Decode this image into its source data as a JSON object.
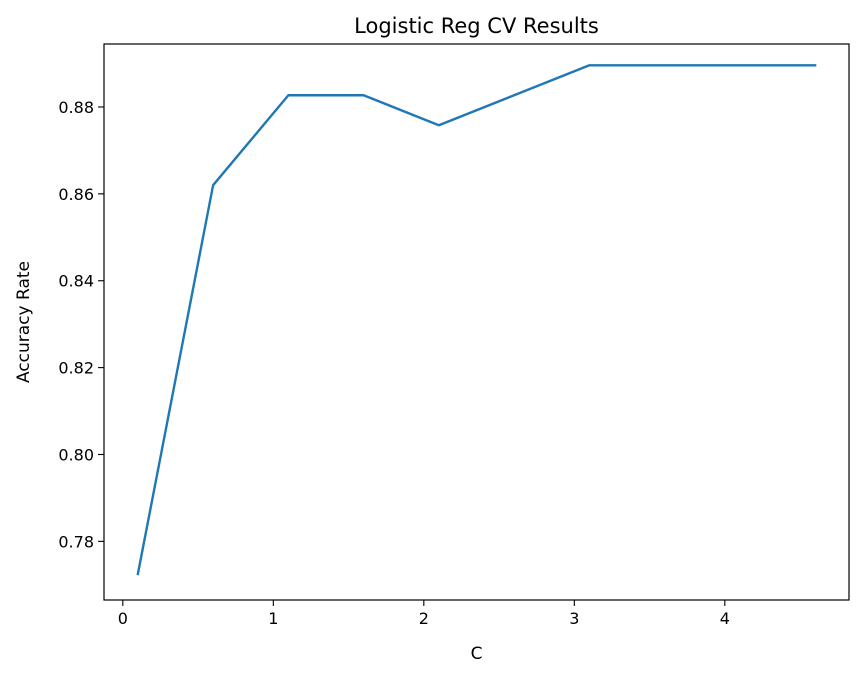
{
  "chart_data": {
    "type": "line",
    "title": "Logistic Reg CV Results",
    "xlabel": "C",
    "ylabel": "Accuracy Rate",
    "xlim": [
      -0.125,
      4.825
    ],
    "ylim": [
      0.7665,
      0.8945
    ],
    "xticks": [
      0,
      1,
      2,
      3,
      4
    ],
    "xtick_labels": [
      "0",
      "1",
      "2",
      "3",
      "4"
    ],
    "yticks": [
      0.78,
      0.8,
      0.82,
      0.84,
      0.86,
      0.88
    ],
    "ytick_labels": [
      "0.78",
      "0.80",
      "0.82",
      "0.84",
      "0.86",
      "0.88"
    ],
    "grid": false,
    "series": [
      {
        "color": "#1f77b4",
        "x": [
          0.1,
          0.6,
          1.1,
          1.6,
          2.1,
          2.6,
          3.1,
          3.6,
          4.1,
          4.6
        ],
        "y": [
          0.7725,
          0.862,
          0.8827,
          0.8827,
          0.8758,
          0.8827,
          0.8896,
          0.8896,
          0.8896,
          0.8896
        ]
      }
    ]
  }
}
